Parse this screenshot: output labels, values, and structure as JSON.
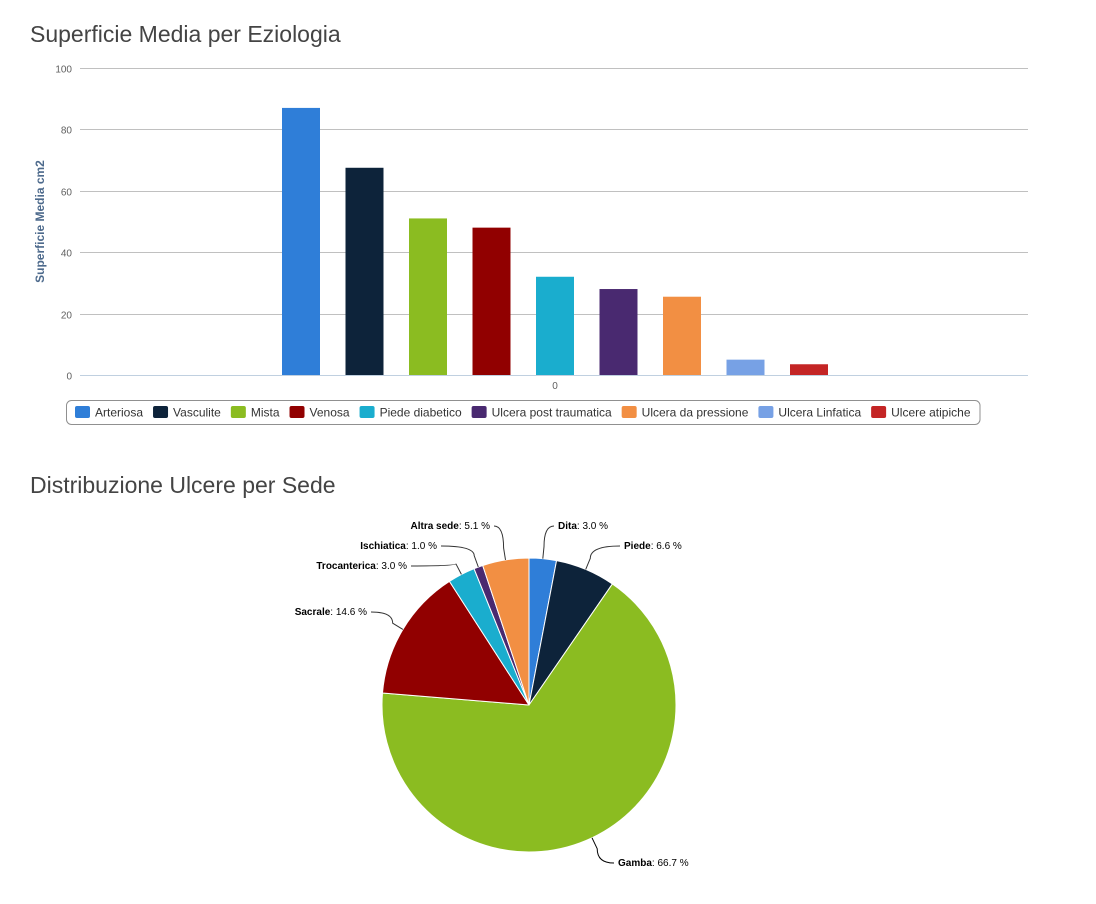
{
  "bar_chart": {
    "title": "Superficie Media per Eziologia"
  },
  "pie_chart": {
    "title": "Distribuzione Ulcere per Sede"
  },
  "chart_data": [
    {
      "type": "bar",
      "title": "Superficie Media per Eziologia",
      "ylabel": "Superficie Media cm2",
      "xlabel": "",
      "categories": [
        "0"
      ],
      "ylim": [
        0,
        100
      ],
      "yticks": [
        0,
        20,
        40,
        60,
        80,
        100
      ],
      "grid": true,
      "legend_position": "bottom",
      "series": [
        {
          "name": "Arteriosa",
          "values": [
            87
          ],
          "color": "#2f7ed8"
        },
        {
          "name": "Vasculite",
          "values": [
            67.5
          ],
          "color": "#0d233a"
        },
        {
          "name": "Mista",
          "values": [
            51
          ],
          "color": "#8bbc21"
        },
        {
          "name": "Venosa",
          "values": [
            48
          ],
          "color": "#910000"
        },
        {
          "name": "Piede diabetico",
          "values": [
            32
          ],
          "color": "#1aadce"
        },
        {
          "name": "Ulcera post traumatica",
          "values": [
            28
          ],
          "color": "#492970"
        },
        {
          "name": "Ulcera da pressione",
          "values": [
            25.5
          ],
          "color": "#f28f43"
        },
        {
          "name": "Ulcera Linfatica",
          "values": [
            5
          ],
          "color": "#77a1e5"
        },
        {
          "name": "Ulcere atipiche",
          "values": [
            3.5
          ],
          "color": "#c42525"
        }
      ]
    },
    {
      "type": "pie",
      "title": "Distribuzione Ulcere per Sede",
      "slices": [
        {
          "name": "Dita",
          "value": 3.0,
          "label": "3.0 %",
          "color": "#2f7ed8"
        },
        {
          "name": "Piede",
          "value": 6.6,
          "label": "6.6 %",
          "color": "#0d233a"
        },
        {
          "name": "Gamba",
          "value": 66.7,
          "label": "66.7 %",
          "color": "#8bbc21"
        },
        {
          "name": "Sacrale",
          "value": 14.6,
          "label": "14.6 %",
          "color": "#910000"
        },
        {
          "name": "Trocanterica",
          "value": 3.0,
          "label": "3.0 %",
          "color": "#1aadce"
        },
        {
          "name": "Ischiatica",
          "value": 1.0,
          "label": "1.0 %",
          "color": "#492970"
        },
        {
          "name": "Altra sede",
          "value": 5.1,
          "label": "5.1 %",
          "color": "#f28f43"
        }
      ]
    }
  ]
}
